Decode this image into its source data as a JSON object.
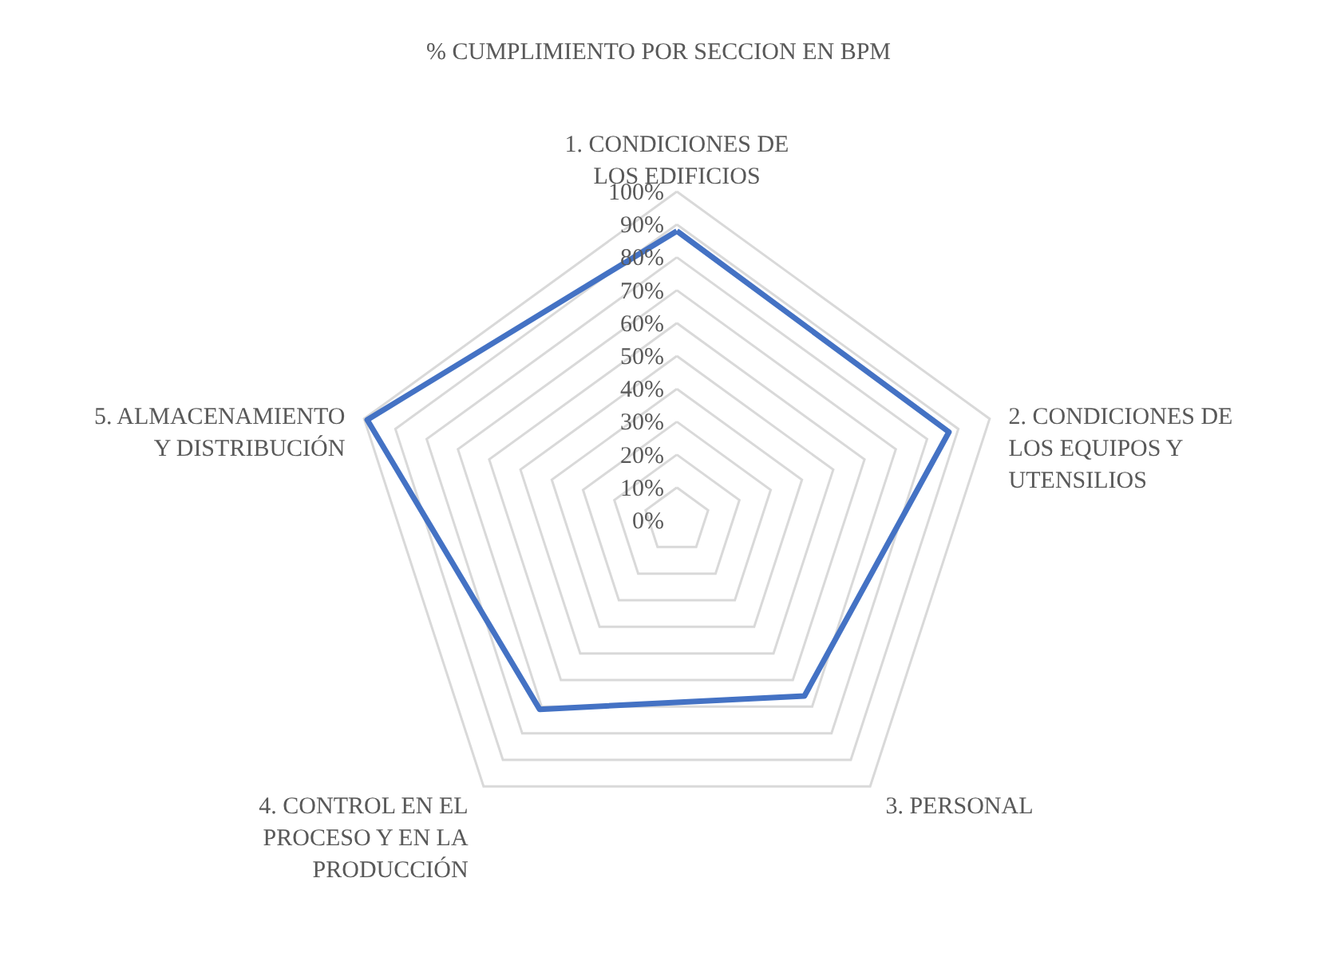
{
  "chart_data": {
    "type": "radar",
    "title": "% CUMPLIMIENTO POR SECCION EN BPM",
    "categories": [
      "1. CONDICIONES DE LOS EDIFICIOS",
      "2. CONDICIONES DE LOS EQUIPOS Y UTENSILIOS",
      "3. PERSONAL",
      "4. CONTROL EN EL PROCESO Y EN LA PRODUCCIÓN",
      "5. ALMACENAMIENTO Y DISTRIBUCIÓN"
    ],
    "series": [
      {
        "color": "#4472c4",
        "values": [
          88,
          87,
          66,
          71,
          99
        ]
      }
    ],
    "ylim": [
      0,
      100
    ],
    "yticks": [
      {
        "value": 0,
        "label": "0%"
      },
      {
        "value": 10,
        "label": "10%"
      },
      {
        "value": 20,
        "label": "20%"
      },
      {
        "value": 30,
        "label": "30%"
      },
      {
        "value": 40,
        "label": "40%"
      },
      {
        "value": 50,
        "label": "50%"
      },
      {
        "value": 60,
        "label": "60%"
      },
      {
        "value": 70,
        "label": "70%"
      },
      {
        "value": 80,
        "label": "80%"
      },
      {
        "value": 90,
        "label": "90%"
      },
      {
        "value": 100,
        "label": "100%"
      }
    ],
    "grid": true
  }
}
